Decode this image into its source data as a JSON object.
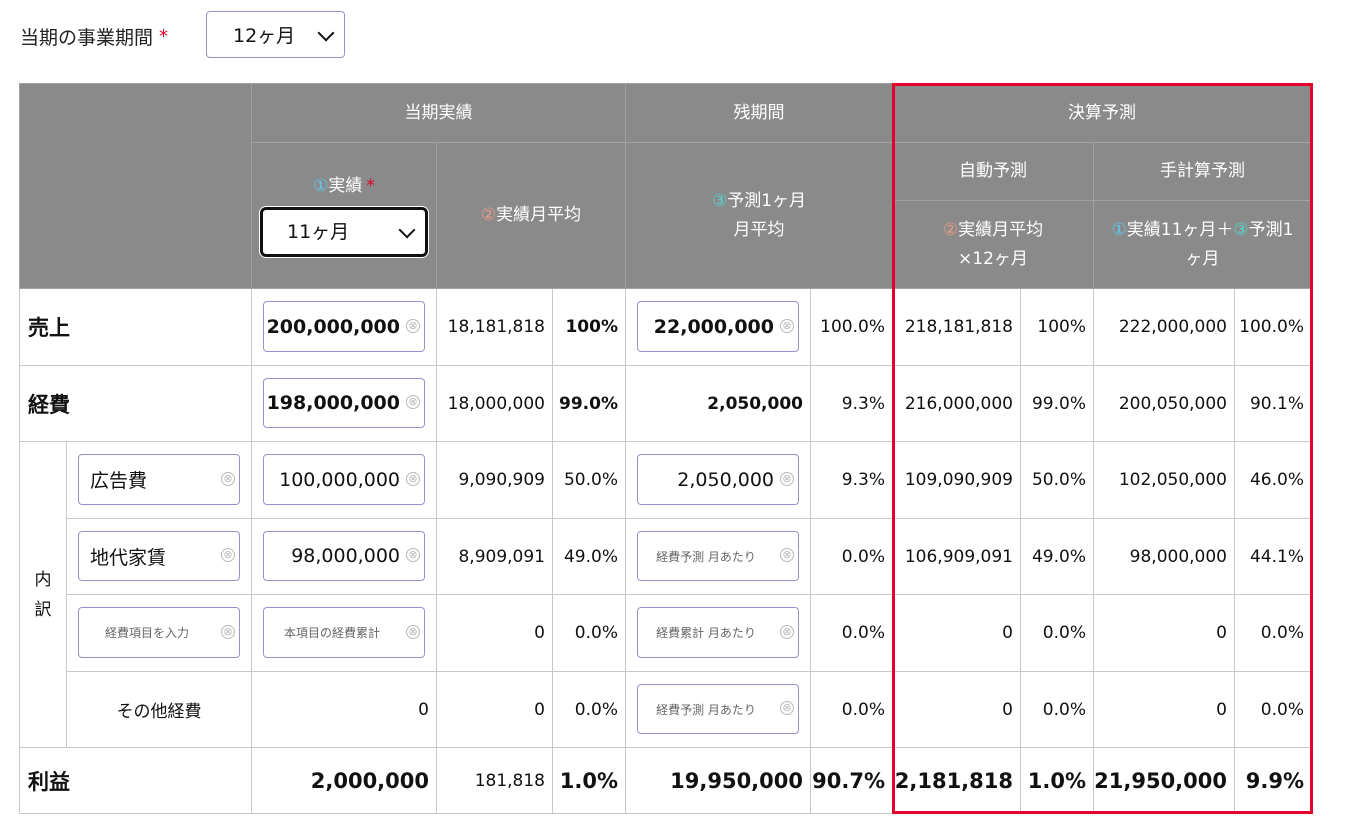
{
  "period": {
    "label": "当期の事業期間",
    "required": "*",
    "selected": "12ヶ月"
  },
  "headers": {
    "current_actual": "当期実績",
    "remaining": "残期間",
    "forecast": "決算予測",
    "auto_forecast": "自動予測",
    "manual_forecast": "手計算予測",
    "actual_num": "①",
    "actual_text": "実績",
    "actual_required": "*",
    "actual_select": "11ヶ月",
    "avg_num": "②",
    "avg_text": "実績月平均",
    "pred_num": "③",
    "pred_line1": "予測1ヶ月",
    "pred_line2": "月平均",
    "auto_num": "②",
    "auto_line1": "実績月平均",
    "auto_line2": "×12ヶ月",
    "manual_num1": "①",
    "manual_text1": "実績11ヶ月＋",
    "manual_num2": "③",
    "manual_text2": "予測1",
    "manual_line2": "ヶ月"
  },
  "rows": {
    "sales": {
      "label": "売上",
      "actual": "200,000,000",
      "avg": "18,181,818",
      "avg_pct": "100%",
      "pred": "22,000,000",
      "pred_pct": "100.0%",
      "auto": "218,181,818",
      "auto_pct": "100%",
      "manual": "222,000,000",
      "manual_pct": "100.0%"
    },
    "expenses": {
      "label": "経費",
      "actual": "198,000,000",
      "avg": "18,000,000",
      "avg_pct": "99.0%",
      "pred": "2,050,000",
      "pred_pct": "9.3%",
      "auto": "216,000,000",
      "auto_pct": "99.0%",
      "manual": "200,050,000",
      "manual_pct": "90.1%"
    },
    "breakdown_label": "内訳",
    "ad": {
      "name": "広告費",
      "actual": "100,000,000",
      "avg": "9,090,909",
      "avg_pct": "50.0%",
      "pred": "2,050,000",
      "pred_pct": "9.3%",
      "auto": "109,090,909",
      "auto_pct": "50.0%",
      "manual": "102,050,000",
      "manual_pct": "46.0%"
    },
    "rent": {
      "name": "地代家賃",
      "actual": "98,000,000",
      "avg": "8,909,091",
      "avg_pct": "49.0%",
      "pred_placeholder": "経費予測 月あたり",
      "pred_pct": "0.0%",
      "auto": "106,909,091",
      "auto_pct": "49.0%",
      "manual": "98,000,000",
      "manual_pct": "44.1%"
    },
    "custom": {
      "name_placeholder": "経費項目を入力",
      "actual_placeholder": "本項目の経費累計",
      "avg": "0",
      "avg_pct": "0.0%",
      "pred_placeholder": "経費累計 月あたり",
      "pred_pct": "0.0%",
      "auto": "0",
      "auto_pct": "0.0%",
      "manual": "0",
      "manual_pct": "0.0%"
    },
    "other": {
      "name": "その他経費",
      "actual": "0",
      "avg": "0",
      "avg_pct": "0.0%",
      "pred_placeholder": "経費予測 月あたり",
      "pred_pct": "0.0%",
      "auto": "0",
      "auto_pct": "0.0%",
      "manual": "0",
      "manual_pct": "0.0%"
    },
    "profit": {
      "label": "利益",
      "actual": "2,000,000",
      "avg": "181,818",
      "avg_pct": "1.0%",
      "pred": "19,950,000",
      "pred_pct": "90.7%",
      "auto": "2,181,818",
      "auto_pct": "1.0%",
      "manual": "21,950,000",
      "manual_pct": "9.9%"
    }
  },
  "clear_icon": "⊗",
  "colors": {
    "header_bg": "#8a8a8a",
    "highlight_border": "#e4002b",
    "input_border": "#9a8fd0"
  }
}
